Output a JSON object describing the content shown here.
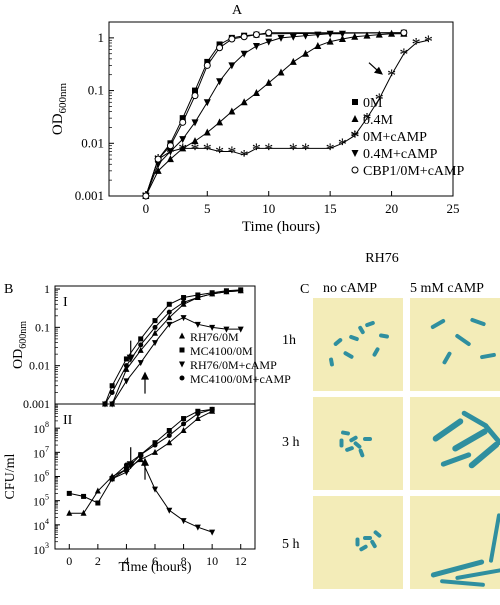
{
  "panel_labels": {
    "a": "A",
    "b": "B",
    "c": "C"
  },
  "chart_data": [
    {
      "id": "A",
      "type": "line",
      "xlabel": "Time (hours)",
      "ylabel": "OD",
      "ylabel_sub": "600nm",
      "xlim": [
        -3,
        25
      ],
      "ylim": [
        0.001,
        2
      ],
      "yscale": "log",
      "xticks": [
        0,
        5,
        10,
        15,
        20,
        25
      ],
      "yticks": [
        {
          "v": 0.001,
          "t": "0.001"
        },
        {
          "v": 0.01,
          "t": "0.01"
        },
        {
          "v": 0.1,
          "t": "0.1"
        },
        {
          "v": 1,
          "t": "1"
        }
      ],
      "legend_position": "bottom-right",
      "series": [
        {
          "name": "0M",
          "marker": "square",
          "x": [
            0,
            1,
            2,
            3,
            4,
            5,
            6,
            7,
            8,
            9,
            10,
            21
          ],
          "y": [
            0.001,
            0.005,
            0.01,
            0.03,
            0.1,
            0.35,
            0.75,
            1.0,
            1.1,
            1.15,
            1.2,
            1.25
          ]
        },
        {
          "name": "0.4M",
          "marker": "triangle",
          "x": [
            0,
            1,
            2,
            3,
            4,
            5,
            6,
            7,
            8,
            9,
            10,
            11,
            12,
            13,
            14,
            15,
            16,
            17,
            18,
            19,
            20,
            21
          ],
          "y": [
            0.001,
            0.003,
            0.005,
            0.008,
            0.011,
            0.016,
            0.025,
            0.04,
            0.06,
            0.09,
            0.14,
            0.22,
            0.35,
            0.5,
            0.7,
            0.85,
            0.95,
            1.05,
            1.1,
            1.15,
            1.2,
            1.2
          ]
        },
        {
          "name": "0M+cAMP",
          "marker": "asterisk",
          "x": [
            0,
            1,
            2,
            3,
            4,
            5,
            6,
            7,
            8,
            9,
            10,
            12,
            13,
            15,
            16,
            17,
            18,
            19,
            20,
            21,
            22,
            23
          ],
          "y": [
            0.001,
            0.005,
            0.007,
            0.008,
            0.008,
            0.008,
            0.007,
            0.007,
            0.006,
            0.008,
            0.008,
            0.008,
            0.008,
            0.008,
            0.01,
            0.014,
            0.03,
            0.07,
            0.2,
            0.5,
            0.8,
            0.9
          ]
        },
        {
          "name": "0.4M+cAMP",
          "marker": "triangle-down",
          "x": [
            0,
            1,
            2,
            3,
            4,
            5,
            6,
            7,
            8,
            9,
            10,
            11,
            12,
            13,
            14,
            15,
            16
          ],
          "y": [
            0.001,
            0.004,
            0.007,
            0.012,
            0.025,
            0.06,
            0.15,
            0.3,
            0.5,
            0.7,
            0.85,
            1.0,
            1.05,
            1.1,
            1.15,
            1.2,
            1.2
          ]
        },
        {
          "name": "CBP1/0M+cAMP",
          "marker": "circle-open",
          "x": [
            0,
            1,
            2,
            3,
            4,
            5,
            6,
            7,
            8,
            9,
            10,
            21
          ],
          "y": [
            0.001,
            0.005,
            0.009,
            0.025,
            0.08,
            0.3,
            0.65,
            0.95,
            1.05,
            1.15,
            1.25,
            1.25
          ]
        }
      ]
    },
    {
      "id": "B-I",
      "type": "line",
      "panel_label": "I",
      "ylabel": "OD",
      "ylabel_sub": "600nm",
      "xlim": [
        -1,
        13
      ],
      "ylim": [
        0.001,
        1.2
      ],
      "yscale": "log",
      "yticks": [
        {
          "v": 0.001,
          "t": "0.001"
        },
        {
          "v": 0.01,
          "t": "0.01"
        },
        {
          "v": 0.1,
          "t": "0.1"
        },
        {
          "v": 1,
          "t": "1"
        }
      ],
      "legend_position": "bottom-right",
      "series": [
        {
          "name": "RH76/0M",
          "marker": "triangle",
          "x": [
            2.5,
            3,
            4,
            5,
            6,
            7,
            8,
            9,
            10,
            11,
            12
          ],
          "y": [
            0.001,
            0.001,
            0.008,
            0.025,
            0.07,
            0.18,
            0.4,
            0.6,
            0.75,
            0.85,
            0.9
          ]
        },
        {
          "name": "MC4100/0M",
          "marker": "square",
          "x": [
            2.5,
            3,
            4,
            5,
            6,
            7,
            8,
            9,
            10,
            11,
            12
          ],
          "y": [
            0.001,
            0.003,
            0.015,
            0.05,
            0.15,
            0.4,
            0.6,
            0.7,
            0.8,
            0.9,
            0.95
          ]
        },
        {
          "name": "RH76/0M+cAMP",
          "marker": "triangle-down",
          "x": [
            2.5,
            3,
            4,
            5,
            6,
            7,
            8,
            9,
            10,
            11,
            12
          ],
          "y": [
            0.001,
            0.001,
            0.004,
            0.012,
            0.04,
            0.12,
            0.18,
            0.12,
            0.1,
            0.09,
            0.09
          ]
        },
        {
          "name": "MC4100/0M+cAMP",
          "marker": "circle",
          "x": [
            2.5,
            3,
            4,
            5,
            6,
            7,
            8,
            9,
            10,
            11,
            12
          ],
          "y": [
            0.001,
            0.002,
            0.01,
            0.035,
            0.1,
            0.25,
            0.45,
            0.6,
            0.75,
            0.85,
            0.9
          ]
        }
      ],
      "annotations": [
        {
          "type": "arrow-down",
          "x": 4.3,
          "y": 0.012
        },
        {
          "type": "arrow-up",
          "x": 5.3,
          "y": 0.007
        }
      ]
    },
    {
      "id": "B-II",
      "type": "line",
      "panel_label": "II",
      "xlabel": "Time (hours)",
      "ylabel": "CFU/ml",
      "xlim": [
        -1,
        13
      ],
      "ylim": [
        1000,
        1000000000
      ],
      "yscale": "log",
      "xticks": [
        0,
        2,
        4,
        6,
        8,
        10,
        12
      ],
      "yticks": [
        {
          "v": 1000,
          "b": "10",
          "e": "3"
        },
        {
          "v": 10000,
          "b": "10",
          "e": "4"
        },
        {
          "v": 100000,
          "b": "10",
          "e": "5"
        },
        {
          "v": 1000000,
          "b": "10",
          "e": "6"
        },
        {
          "v": 10000000,
          "b": "10",
          "e": "7"
        },
        {
          "v": 100000000,
          "b": "10",
          "e": "8"
        }
      ],
      "series": [
        {
          "name": "RH76/0M",
          "marker": "triangle",
          "x": [
            0,
            1,
            2,
            3,
            4,
            5,
            6,
            7,
            8,
            9,
            10
          ],
          "y": [
            30000,
            30000,
            250000,
            1000000,
            2000000,
            5000000,
            10000000,
            25000000,
            80000000,
            250000000,
            500000000
          ]
        },
        {
          "name": "MC4100/0M",
          "marker": "square",
          "x": [
            0,
            1,
            2,
            3,
            4,
            5,
            6,
            7,
            8,
            9,
            10
          ],
          "y": [
            200000,
            150000,
            80000,
            800000,
            2000000,
            8000000,
            25000000,
            80000000,
            250000000,
            500000000,
            600000000
          ]
        },
        {
          "name": "RH76/0M+cAMP",
          "marker": "triangle-down",
          "x": [
            3,
            4,
            5,
            6,
            7,
            8,
            9,
            10
          ],
          "y": [
            800000,
            1500000,
            6000000,
            300000,
            40000,
            15000,
            8000,
            5000
          ]
        },
        {
          "name": "MC4100/0M+cAMP",
          "marker": "circle",
          "x": [
            3,
            4,
            5,
            6,
            7,
            8,
            9,
            10
          ],
          "y": [
            900000,
            3000000,
            8000000,
            20000000,
            50000000,
            150000000,
            400000000,
            600000000
          ]
        }
      ],
      "annotations": [
        {
          "type": "arrow-down",
          "x": 4.3,
          "y": 2000000
        },
        {
          "type": "arrow-up",
          "x": 5.3,
          "y": 6000000
        }
      ]
    }
  ],
  "micrographs": {
    "title": "RH76",
    "columns": [
      "no cAMP",
      "5 mM cAMP"
    ],
    "rows": [
      "1h",
      "3 h",
      "5 h"
    ]
  },
  "colors": {
    "line": "#000000",
    "micro_background": "#f3ecb8",
    "cell": "#2f8f9f"
  }
}
